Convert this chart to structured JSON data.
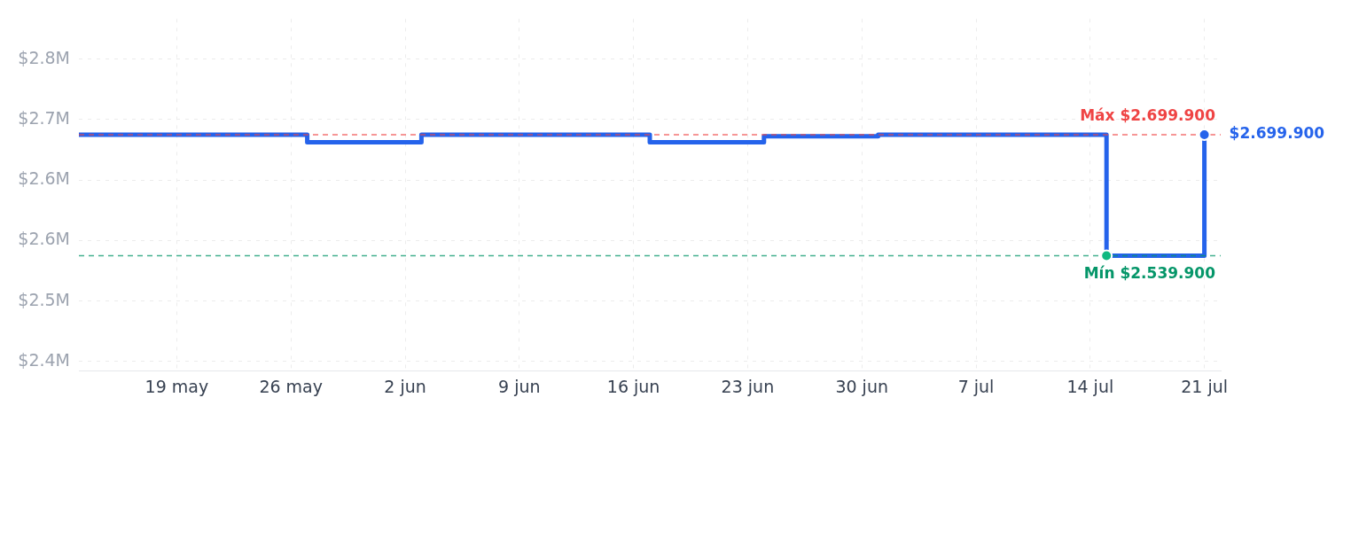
{
  "chart_data": {
    "type": "step",
    "x": [
      "--05-13",
      "--05-27",
      "--06-03",
      "--06-17",
      "--06-24",
      "--07-01",
      "--07-15",
      "--07-21"
    ],
    "series": [
      {
        "color": "#2563eb",
        "marker": "none",
        "values": [
          2.6999,
          2.6899,
          2.6999,
          2.6899,
          2.6979,
          2.6999,
          2.5399,
          2.6999
        ]
      },
      {
        "type": "scatter",
        "marker": "circle",
        "x": [
          "--07-15",
          "--07-21"
        ],
        "colors": [
          "#10b981",
          "#2563eb"
        ],
        "values": [
          2.5399,
          2.6999
        ]
      }
    ],
    "xlim": [
      "--05-13",
      "--07-22"
    ],
    "xticks": [
      {
        "value": "--05-19",
        "label": "19 may"
      },
      {
        "value": "--05-26",
        "label": "26 may"
      },
      {
        "value": "--06-02",
        "label": "2 jun"
      },
      {
        "value": "--06-09",
        "label": "9 jun"
      },
      {
        "value": "--06-16",
        "label": "16 jun"
      },
      {
        "value": "--06-23",
        "label": "23 jun"
      },
      {
        "value": "--06-30",
        "label": "30 jun"
      },
      {
        "value": "--07-07",
        "label": "7 jul"
      },
      {
        "value": "--07-14",
        "label": "14 jul"
      },
      {
        "value": "--07-21",
        "label": "21 jul"
      }
    ],
    "ylim": [
      2.388,
      2.853
    ],
    "yticks": [
      {
        "value": 2.4,
        "label": "$2.4M"
      },
      {
        "value": 2.48,
        "label": "$2.5M"
      },
      {
        "value": 2.56,
        "label": "$2.6M"
      },
      {
        "value": 2.64,
        "label": "$2.6M"
      },
      {
        "value": 2.72,
        "label": "$2.7M"
      },
      {
        "value": 2.8,
        "label": "$2.8M"
      }
    ],
    "ref_lines": [
      {
        "axis": "y",
        "value": 2.6999,
        "label": "Máx $2.699.900",
        "color": "#ef4444",
        "line_style": "dashed"
      },
      {
        "axis": "y",
        "value": 2.5399,
        "label": "Mín $2.539.900",
        "color": "#059669",
        "line_style": "dashed"
      }
    ],
    "annotations": [
      {
        "text": "$2.699.900",
        "x": "--07-21",
        "y": 2.6999
      }
    ],
    "grid": true,
    "legend": false,
    "line_style": "solid"
  }
}
